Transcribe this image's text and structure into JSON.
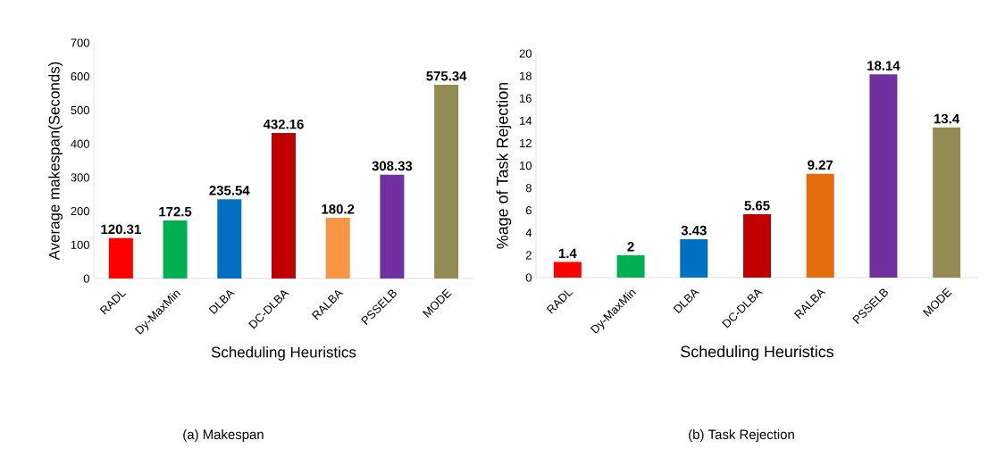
{
  "chart_data": [
    {
      "type": "bar",
      "categories": [
        "RADL",
        "Dy-MaxMin",
        "DLBA",
        "DC-DLBA",
        "RALBA",
        "PSSELB",
        "MODE"
      ],
      "values": [
        120.31,
        172.5,
        235.54,
        432.16,
        180.2,
        308.33,
        575.34
      ],
      "colors": [
        "#ff0000",
        "#00b050",
        "#0070c0",
        "#c00000",
        "#f79646",
        "#7030a0",
        "#948a54"
      ],
      "xlabel": "Scheduling Heuristics",
      "ylabel": "Average makespan(Seconds)",
      "ylim": [
        0,
        700
      ],
      "yticks": [
        0,
        100,
        200,
        300,
        400,
        500,
        600,
        700
      ],
      "data_labels": true,
      "annotations": [
        "(a) Makespan"
      ]
    },
    {
      "type": "bar",
      "categories": [
        "RADL",
        "Dy-MaxMin",
        "DLBA",
        "DC-DLBA",
        "RALBA",
        "PSSELB",
        "MODE"
      ],
      "values": [
        1.4,
        2,
        3.43,
        5.65,
        9.27,
        18.14,
        13.4
      ],
      "colors": [
        "#ff0000",
        "#00b050",
        "#0070c0",
        "#c00000",
        "#e46c0a",
        "#7030a0",
        "#948a54"
      ],
      "xlabel": "Scheduling Heuristics",
      "ylabel": "%age of Task Rejection",
      "ylim": [
        0,
        20
      ],
      "yticks": [
        0,
        2,
        4,
        6,
        8,
        10,
        12,
        14,
        16,
        18,
        20
      ],
      "data_labels": true,
      "annotations": [
        "(b) Task Rejection"
      ]
    }
  ]
}
